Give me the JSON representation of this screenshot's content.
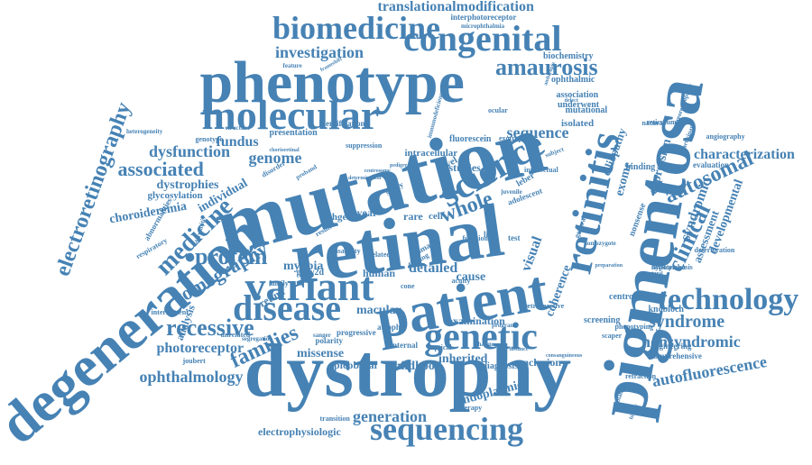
{
  "title": "Word cloud",
  "accent_color": "#4682b4",
  "words": [
    {
      "text": "mutation",
      "rot": -15
    },
    {
      "text": "retinal",
      "rot": -8
    },
    {
      "text": "dystrophy",
      "rot": 0
    },
    {
      "text": "pigmentosa",
      "rot": -80
    },
    {
      "text": "degeneration",
      "rot": -40
    },
    {
      "text": "phenotype",
      "rot": 0
    },
    {
      "text": "patient",
      "rot": -10
    },
    {
      "text": "molecular",
      "rot": 0
    },
    {
      "text": "congenital",
      "rot": 0
    },
    {
      "text": "retinitis",
      "rot": -78
    },
    {
      "text": "variant",
      "rot": 0
    },
    {
      "text": "genetic",
      "rot": 0
    },
    {
      "text": "science",
      "rot": -30
    },
    {
      "text": "disease",
      "rot": 0
    },
    {
      "text": "sequencing",
      "rot": 0
    },
    {
      "text": "biomedicine",
      "rot": 0
    },
    {
      "text": "technology",
      "rot": 0
    },
    {
      "text": "amaurosis",
      "rot": 0
    },
    {
      "text": "electroretinography",
      "rot": -70
    },
    {
      "text": "families",
      "rot": -25
    },
    {
      "text": "medicine",
      "rot": -45
    },
    {
      "text": "clinical",
      "rot": -65
    },
    {
      "text": "autosomal",
      "rot": -25
    },
    {
      "text": "whole",
      "rot": -20
    },
    {
      "text": "recessive",
      "rot": 0
    },
    {
      "text": "protein",
      "rot": 0
    },
    {
      "text": "syndrome",
      "rot": 0
    },
    {
      "text": "translationalmodification",
      "rot": 0
    },
    {
      "text": "investigation",
      "rot": 0
    },
    {
      "text": "associated",
      "rot": 0
    },
    {
      "text": "ophthalmology",
      "rot": 0
    },
    {
      "text": "autofluorescence",
      "rot": -10
    },
    {
      "text": "nonsyndromic",
      "rot": 0
    },
    {
      "text": "generation",
      "rot": 0
    },
    {
      "text": "tomography",
      "rot": -30
    },
    {
      "text": "syndromic",
      "rot": -70
    },
    {
      "text": "characterization",
      "rot": 0
    },
    {
      "text": "expression",
      "rot": -75
    },
    {
      "text": "photoreceptor",
      "rot": 0
    },
    {
      "text": "sequence",
      "rot": 0
    },
    {
      "text": "genome",
      "rot": 0
    },
    {
      "text": "fundus",
      "rot": 0
    },
    {
      "text": "exome",
      "rot": -75
    },
    {
      "text": "developmental",
      "rot": -70
    },
    {
      "text": "dysfunction",
      "rot": 0
    },
    {
      "text": "individual",
      "rot": -30
    },
    {
      "text": "macular",
      "rot": 0
    },
    {
      "text": "childhood",
      "rot": 0
    },
    {
      "text": "electrophysiologic",
      "rot": 0
    },
    {
      "text": "missense",
      "rot": 0
    },
    {
      "text": "inherited",
      "rot": 0
    },
    {
      "text": "assessment",
      "rot": -70
    },
    {
      "text": "visual",
      "rot": -70
    },
    {
      "text": "analysis",
      "rot": -70
    },
    {
      "text": "examination",
      "rot": 0
    },
    {
      "text": "detailed",
      "rot": 0
    },
    {
      "text": "cause",
      "rot": 0
    },
    {
      "text": "retina",
      "rot": -30
    },
    {
      "text": "human",
      "rot": 0
    },
    {
      "text": "myopia",
      "rot": 0
    },
    {
      "text": "gucy2d",
      "rot": 0
    },
    {
      "text": "choroideremia",
      "rot": -10
    },
    {
      "text": "dystrophies",
      "rot": 0
    },
    {
      "text": "glycosylation",
      "rot": 0
    },
    {
      "text": "apicobasal",
      "rot": 0
    },
    {
      "text": "endoplasmic",
      "rot": -15
    },
    {
      "text": "conclusion",
      "rot": 0
    },
    {
      "text": "diagnosis",
      "rot": 0
    },
    {
      "text": "coherence",
      "rot": -70
    },
    {
      "text": "arhgef",
      "rot": 0
    },
    {
      "text": "year",
      "rot": 0
    },
    {
      "text": "novel",
      "rot": -30
    },
    {
      "text": "rare",
      "rot": 0
    },
    {
      "text": "cell",
      "rot": 0
    },
    {
      "text": "ciliopathy",
      "rot": -70
    },
    {
      "text": "knobloch",
      "rot": 0
    },
    {
      "text": "screening",
      "rot": 0
    },
    {
      "text": "comprehensive",
      "rot": 0
    },
    {
      "text": "engineering",
      "rot": 0
    },
    {
      "text": "interphotoreceptor",
      "rot": 0
    },
    {
      "text": "microphthalmia",
      "rot": 0
    },
    {
      "text": "biochemistry",
      "rot": 0
    },
    {
      "text": "ophthalmic",
      "rot": 0
    },
    {
      "text": "association",
      "rot": 0
    },
    {
      "text": "underwent",
      "rot": 0
    },
    {
      "text": "isolated",
      "rot": 0
    },
    {
      "text": "mutational",
      "rot": 0
    },
    {
      "text": "centrosomal",
      "rot": 0
    },
    {
      "text": "nonsense",
      "rot": -70
    },
    {
      "text": "binding",
      "rot": 0
    },
    {
      "text": "evaluation",
      "rot": 0
    },
    {
      "text": "angiography",
      "rot": 0
    },
    {
      "text": "phenotyping",
      "rot": 0
    },
    {
      "text": "intermittent",
      "rot": 0
    },
    {
      "text": "abnormalities",
      "rot": -60
    },
    {
      "text": "respiratory",
      "rot": -30
    },
    {
      "text": "presentation",
      "rot": 0
    },
    {
      "text": "genotype",
      "rot": 0
    },
    {
      "text": "disorder",
      "rot": -30
    },
    {
      "text": "suppression",
      "rot": 0
    },
    {
      "text": "unrelated",
      "rot": 0
    },
    {
      "text": "polarity",
      "rot": 0
    },
    {
      "text": "progressive",
      "rot": 0
    },
    {
      "text": "atrophy",
      "rot": 0
    },
    {
      "text": "internal",
      "rot": 0
    },
    {
      "text": "optical",
      "rot": 0
    },
    {
      "text": "therapy",
      "rot": 0
    },
    {
      "text": "studies",
      "rot": 0
    },
    {
      "text": "intracellular",
      "rot": 0
    },
    {
      "text": "leber",
      "rot": -30
    },
    {
      "text": "domain",
      "rot": -30
    },
    {
      "text": "finding",
      "rot": -30
    },
    {
      "text": "test",
      "rot": 0
    },
    {
      "text": "life",
      "rot": 0
    },
    {
      "text": "related",
      "rot": 0
    },
    {
      "text": "cone",
      "rot": 0
    },
    {
      "text": "acuity",
      "rot": 0
    },
    {
      "text": "study",
      "rot": -30
    },
    {
      "text": "result",
      "rot": -30
    },
    {
      "text": "family",
      "rot": 0
    },
    {
      "text": "sanger",
      "rot": 0
    },
    {
      "text": "feature",
      "rot": 0
    },
    {
      "text": "structure",
      "rot": 0
    },
    {
      "text": "identification",
      "rot": 0
    },
    {
      "text": "fluorescein",
      "rot": 0
    },
    {
      "text": "adolescent",
      "rot": -20
    },
    {
      "text": "general",
      "rot": -70
    },
    {
      "text": "natural",
      "rot": 0
    },
    {
      "text": "reticulum",
      "rot": 0
    },
    {
      "text": "retrospective",
      "rot": 0
    },
    {
      "text": "exotropia",
      "rot": 0
    },
    {
      "text": "ocular",
      "rot": 0
    },
    {
      "text": "subject",
      "rot": -20
    },
    {
      "text": "intellectual",
      "rot": 0
    },
    {
      "text": "refraction",
      "rot": 0
    },
    {
      "text": "joubert",
      "rot": 0
    },
    {
      "text": "scaper",
      "rot": 0
    },
    {
      "text": "hypotrichosis",
      "rot": 0
    },
    {
      "text": "deterioration",
      "rot": 0
    },
    {
      "text": "transition",
      "rot": 0
    },
    {
      "text": "participant",
      "rot": -70
    },
    {
      "text": "vitreoretinopathy",
      "rot": -70
    },
    {
      "text": "development",
      "rot": 0
    },
    {
      "text": "dermatitis",
      "rot": -75
    },
    {
      "text": "immunodeficiency",
      "rot": -75
    },
    {
      "text": "amblyopia",
      "rot": -70
    },
    {
      "text": "frameshift",
      "rot": -30
    },
    {
      "text": "pedigree",
      "rot": 0
    },
    {
      "text": "centrosome",
      "rot": 0
    },
    {
      "text": "determination",
      "rot": 0
    },
    {
      "text": "proband",
      "rot": -30
    },
    {
      "text": "chorioretinal",
      "rot": 0
    },
    {
      "text": "defect",
      "rot": 0
    },
    {
      "text": "distance",
      "rot": 0
    },
    {
      "text": "change",
      "rot": 0
    },
    {
      "text": "segregation",
      "rot": 0
    },
    {
      "text": "preparation",
      "rot": 0
    },
    {
      "text": "structural",
      "rot": 0
    },
    {
      "text": "program",
      "rot": 0
    },
    {
      "text": "heterogeneity",
      "rot": 0
    },
    {
      "text": "disability",
      "rot": 0
    },
    {
      "text": "functional",
      "rot": 0
    },
    {
      "text": "juvenile",
      "rot": 0
    },
    {
      "text": "homozygote",
      "rot": 0
    },
    {
      "text": "consanguineous",
      "rot": 0
    },
    {
      "text": "biallelic",
      "rot": -70
    },
    {
      "text": "history",
      "rot": -70
    },
    {
      "text": "pathway",
      "rot": 0
    },
    {
      "text": "available",
      "rot": 0
    },
    {
      "text": "therapies",
      "rot": -30
    },
    {
      "text": "plaques",
      "rot": 0
    },
    {
      "text": "sclerosis",
      "rot": 0
    }
  ]
}
